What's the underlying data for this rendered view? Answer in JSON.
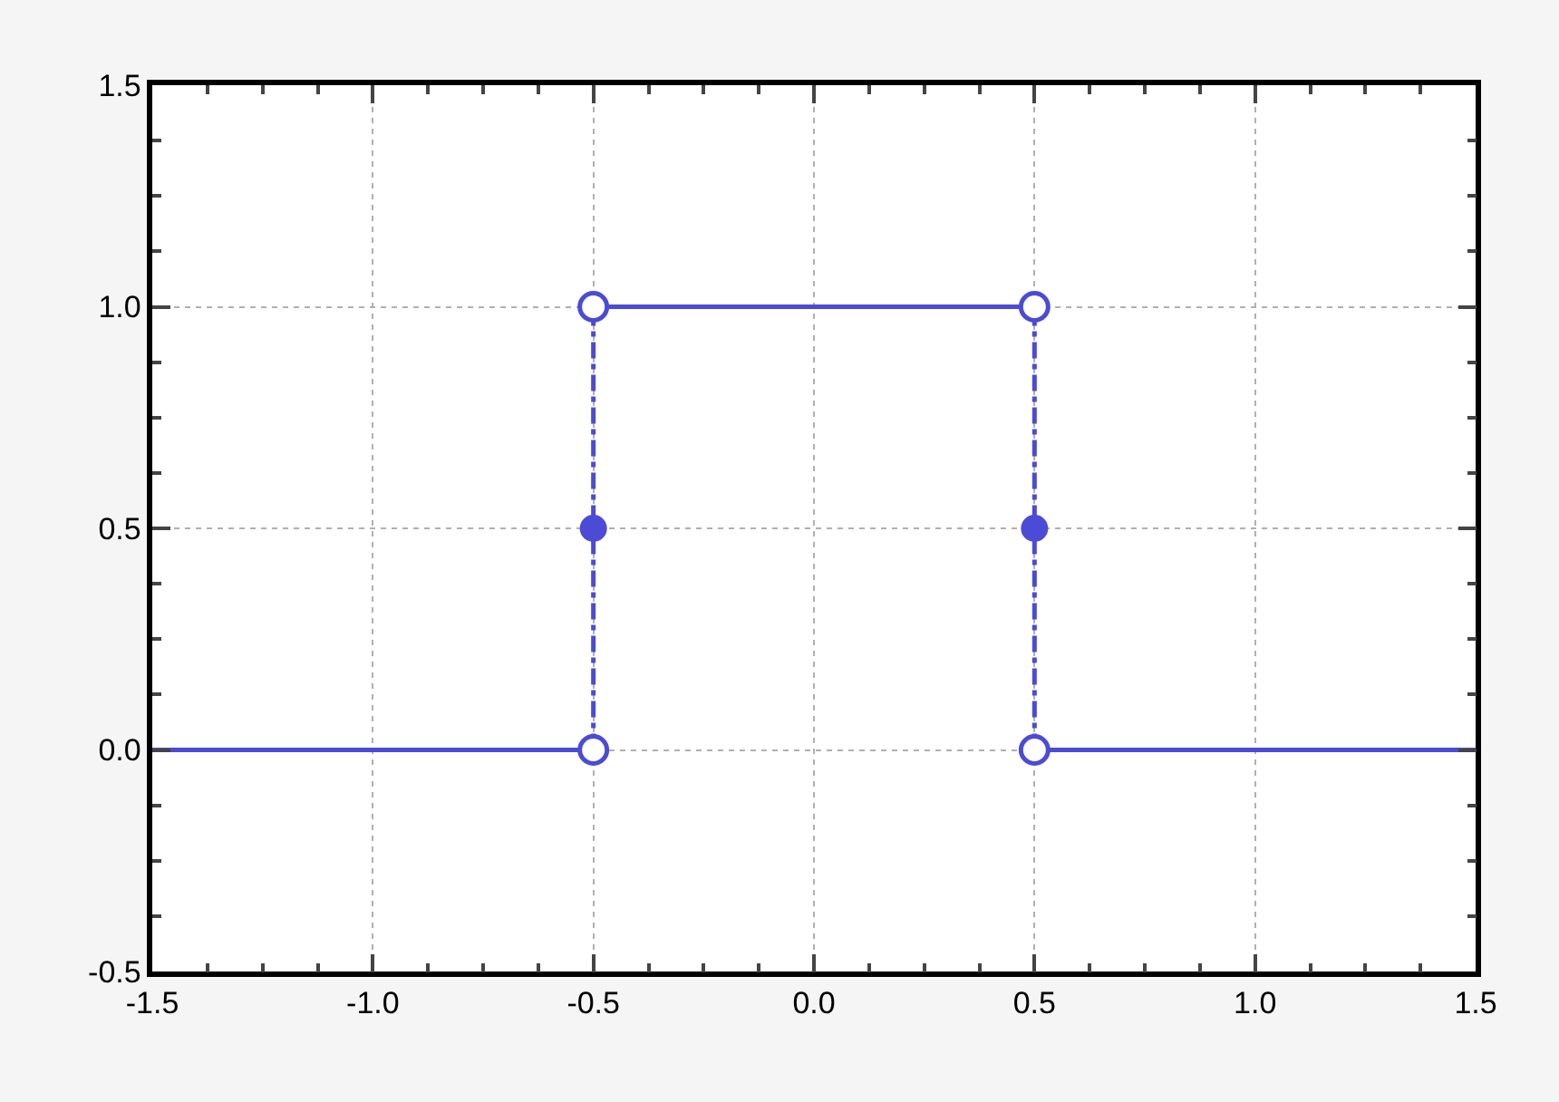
{
  "chart_data": {
    "type": "line",
    "series": [
      {
        "color": "#4b4bd6",
        "x": [
          -1.5,
          -0.5
        ],
        "values": [
          0,
          0
        ],
        "line_style": "solid"
      },
      {
        "color": "#4b4bd6",
        "x": [
          -0.5,
          0.5
        ],
        "values": [
          1,
          1
        ],
        "line_style": "solid"
      },
      {
        "color": "#4b4bd6",
        "x": [
          0.5,
          1.5
        ],
        "values": [
          0,
          0
        ],
        "line_style": "solid"
      },
      {
        "color": "#4b4bd6",
        "x": [
          -0.5,
          -0.5
        ],
        "values": [
          0,
          1
        ],
        "line_style": "dashed"
      },
      {
        "color": "#4b4bd6",
        "x": [
          0.5,
          0.5
        ],
        "values": [
          0,
          1
        ],
        "line_style": "dashed"
      },
      {
        "type": "scatter",
        "color": "#4b4bd6",
        "x": [
          -0.5,
          -0.5,
          0.5,
          0.5
        ],
        "values": [
          0,
          1,
          1,
          0
        ],
        "marker": "circle"
      },
      {
        "type": "scatter",
        "color": "#4b4bd6",
        "x": [
          -0.5,
          0.5
        ],
        "values": [
          0.5,
          0.5
        ],
        "marker": "circle"
      }
    ],
    "xlim": [
      -1.5,
      1.5
    ],
    "ylim": [
      -0.5,
      1.5
    ],
    "xticks": [
      {
        "value": -1.5,
        "label": "-1.5"
      },
      {
        "value": -1.375,
        "label": null
      },
      {
        "value": -1.25,
        "label": null
      },
      {
        "value": -1.125,
        "label": null
      },
      {
        "value": -1.0,
        "label": "-1.0"
      },
      {
        "value": -0.875,
        "label": null
      },
      {
        "value": -0.75,
        "label": null
      },
      {
        "value": -0.625,
        "label": null
      },
      {
        "value": -0.5,
        "label": "-0.5"
      },
      {
        "value": -0.375,
        "label": null
      },
      {
        "value": -0.25,
        "label": null
      },
      {
        "value": -0.125,
        "label": null
      },
      {
        "value": 0,
        "label": "0.0"
      },
      {
        "value": 0.125,
        "label": null
      },
      {
        "value": 0.25,
        "label": null
      },
      {
        "value": 0.375,
        "label": null
      },
      {
        "value": 0.5,
        "label": "0.5"
      },
      {
        "value": 0.625,
        "label": null
      },
      {
        "value": 0.75,
        "label": null
      },
      {
        "value": 0.875,
        "label": null
      },
      {
        "value": 1.0,
        "label": "1.0"
      },
      {
        "value": 1.125,
        "label": null
      },
      {
        "value": 1.25,
        "label": null
      },
      {
        "value": 1.375,
        "label": null
      },
      {
        "value": 1.5,
        "label": "1.5"
      }
    ],
    "yticks": [
      {
        "value": -0.5,
        "label": "-0.5"
      },
      {
        "value": -0.375,
        "label": null
      },
      {
        "value": -0.25,
        "label": null
      },
      {
        "value": -0.125,
        "label": null
      },
      {
        "value": 0,
        "label": "0.0"
      },
      {
        "value": 0.125,
        "label": null
      },
      {
        "value": 0.25,
        "label": null
      },
      {
        "value": 0.375,
        "label": null
      },
      {
        "value": 0.5,
        "label": "0.5"
      },
      {
        "value": 0.625,
        "label": null
      },
      {
        "value": 0.75,
        "label": null
      },
      {
        "value": 0.875,
        "label": null
      },
      {
        "value": 1.0,
        "label": "1.0"
      },
      {
        "value": 1.125,
        "label": null
      },
      {
        "value": 1.25,
        "label": null
      },
      {
        "value": 1.375,
        "label": null
      },
      {
        "value": 1.5,
        "label": "1.5"
      }
    ],
    "grid": true
  }
}
